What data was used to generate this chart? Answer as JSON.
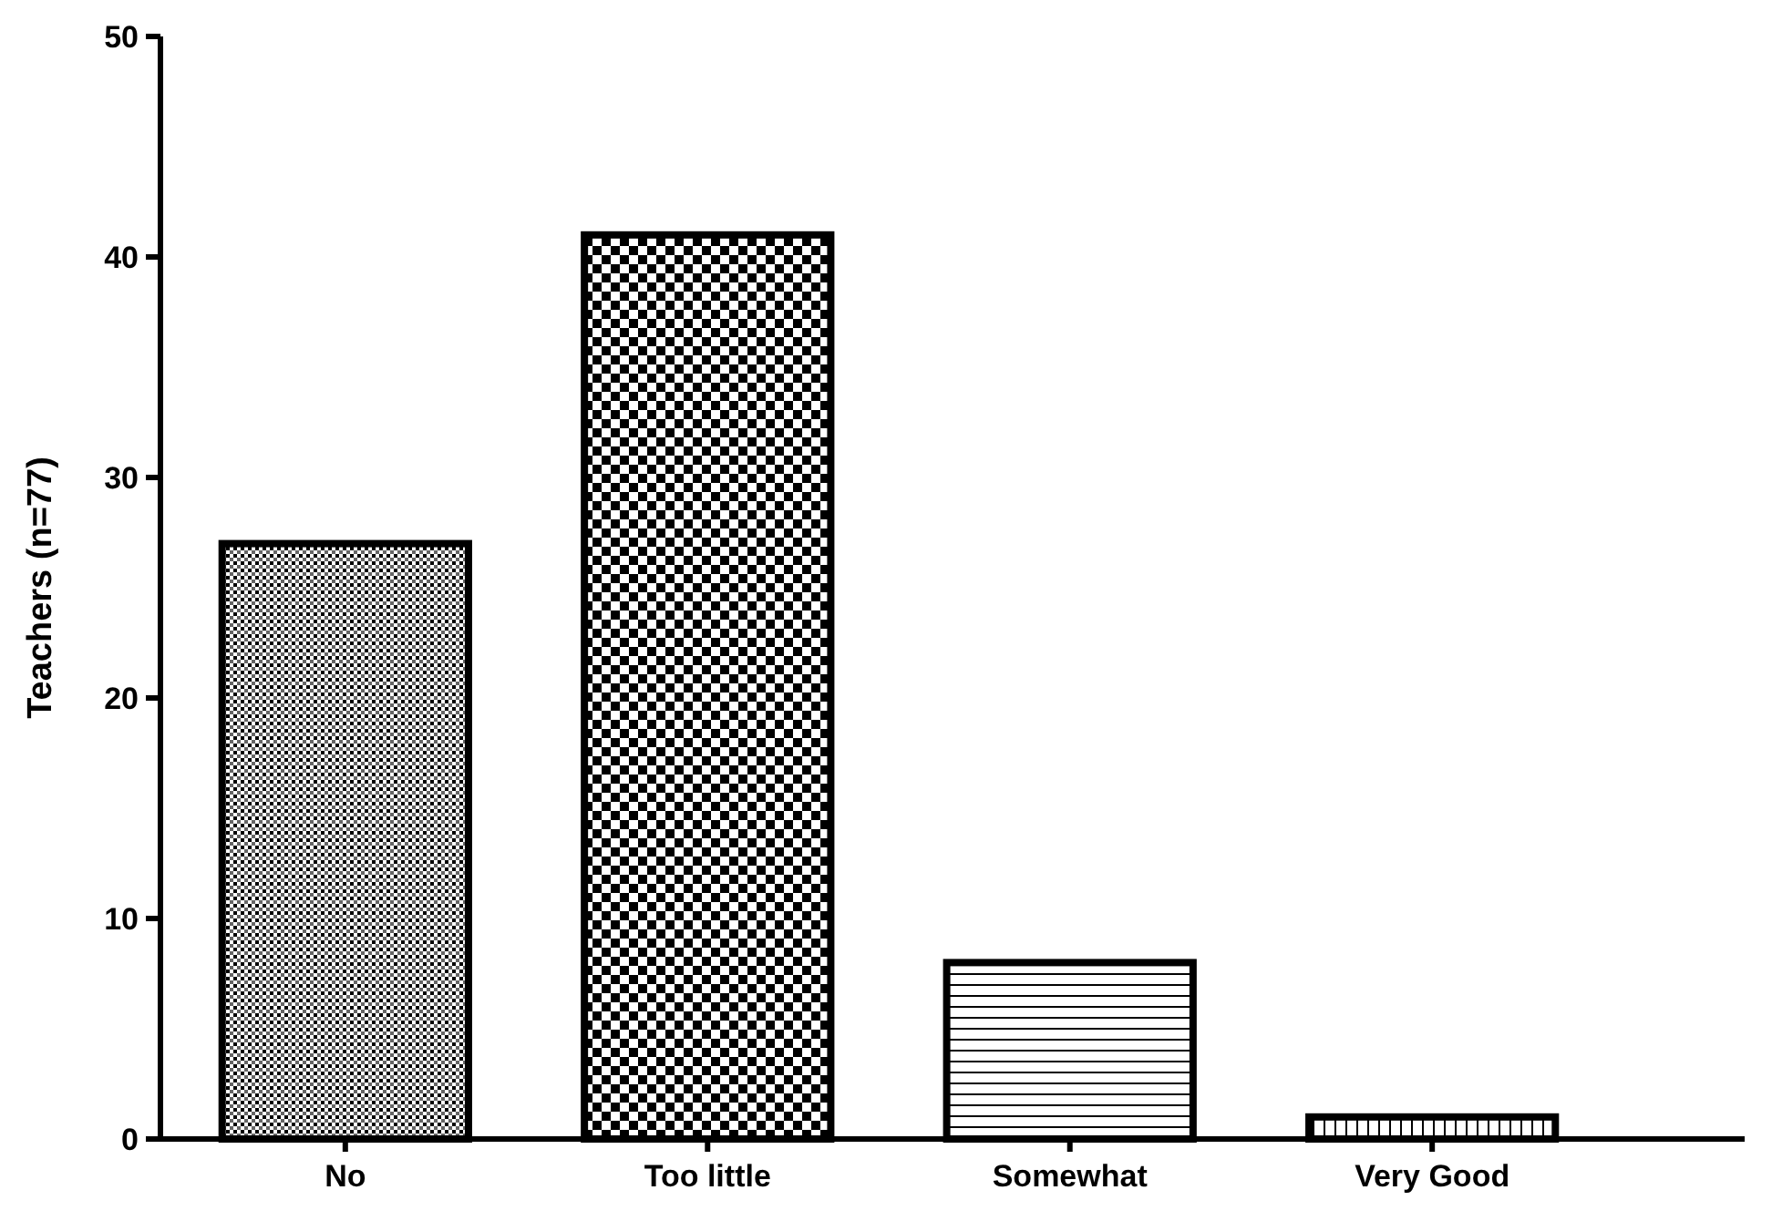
{
  "chart_data": {
    "type": "bar",
    "ylabel": "Teachers (n=77)",
    "categories": [
      "No",
      "Too little",
      "Somewhat",
      "Very Good"
    ],
    "values": [
      27,
      41,
      8,
      1
    ],
    "color": "#000000",
    "ylim": [
      0,
      50
    ],
    "yticks": [
      0,
      10,
      20,
      30,
      40,
      50
    ],
    "grid": false
  }
}
